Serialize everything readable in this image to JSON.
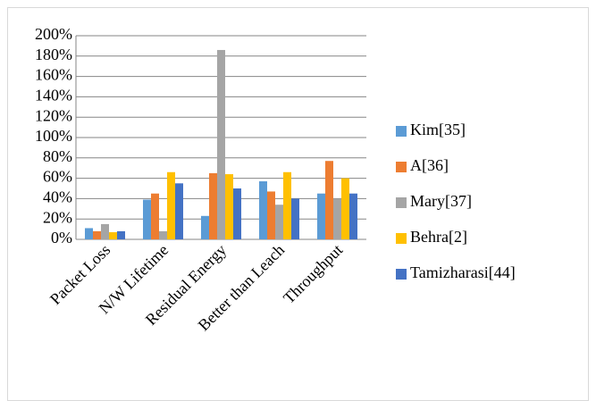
{
  "chart_data": {
    "type": "bar",
    "categories": [
      "Packet Loss",
      "N/W Lifetime",
      "Residual Energy",
      "Better than Leach",
      "Throughput"
    ],
    "series": [
      {
        "name": "Kim[35]",
        "color": "#5b9bd5",
        "values": [
          11,
          39,
          23,
          57,
          45
        ]
      },
      {
        "name": "A[36]",
        "color": "#ed7d31",
        "values": [
          8,
          45,
          65,
          47,
          77
        ]
      },
      {
        "name": "Mary[37]",
        "color": "#a5a5a5",
        "values": [
          15,
          8,
          186,
          34,
          40
        ]
      },
      {
        "name": "Behra[2]",
        "color": "#ffc000",
        "values": [
          7,
          66,
          64,
          66,
          60
        ]
      },
      {
        "name": "Tamizharasi[44]",
        "color": "#4472c4",
        "values": [
          8,
          55,
          50,
          40,
          45
        ]
      }
    ],
    "ylim": [
      0,
      200
    ],
    "yticks": [
      {
        "value": 0,
        "label": "0%"
      },
      {
        "value": 20,
        "label": "20%"
      },
      {
        "value": 40,
        "label": "40%"
      },
      {
        "value": 60,
        "label": "60%"
      },
      {
        "value": 80,
        "label": "80%"
      },
      {
        "value": 100,
        "label": "100%"
      },
      {
        "value": 120,
        "label": "120%"
      },
      {
        "value": 140,
        "label": "140%"
      },
      {
        "value": 160,
        "label": "160%"
      },
      {
        "value": 180,
        "label": "180%"
      },
      {
        "value": 200,
        "label": "200%"
      }
    ],
    "grid": true,
    "legend": "right"
  }
}
